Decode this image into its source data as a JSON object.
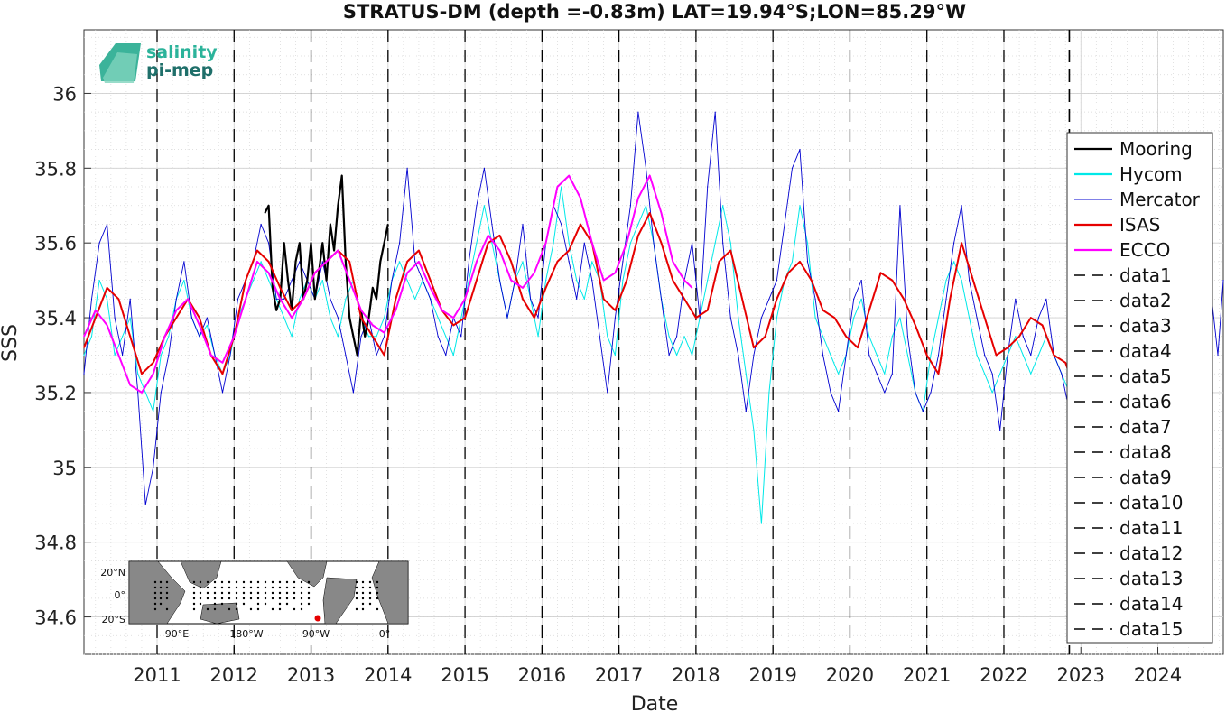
{
  "chart_data": {
    "type": "line",
    "title": "STRATUS-DM (depth =-0.83m) LAT=19.94°S;LON=85.29°W",
    "xlabel": "Date",
    "ylabel": "SSS",
    "xlim": [
      2010.05,
      2024.85
    ],
    "ylim": [
      34.5,
      36.17
    ],
    "x_ticks": [
      2011,
      2012,
      2013,
      2014,
      2015,
      2016,
      2017,
      2018,
      2019,
      2020,
      2021,
      2022,
      2023,
      2024
    ],
    "x_tick_labels": [
      "2011",
      "2012",
      "2013",
      "2014",
      "2015",
      "2016",
      "2017",
      "2018",
      "2019",
      "2020",
      "2021",
      "2022",
      "2023",
      "2024"
    ],
    "y_ticks": [
      34.6,
      34.8,
      35.0,
      35.2,
      35.4,
      35.6,
      35.8,
      36.0
    ],
    "y_tick_labels": [
      "34.6",
      "34.8",
      "35",
      "35.2",
      "35.4",
      "35.6",
      "35.8",
      "36"
    ],
    "grid": "minor dotted, major solid",
    "legend_position": "right",
    "vertical_markers": {
      "names": [
        "data1",
        "data2",
        "data3",
        "data4",
        "data5",
        "data6",
        "data7",
        "data8",
        "data9",
        "data10",
        "data11",
        "data12",
        "data13",
        "data14",
        "data15"
      ],
      "x": [
        2011.0,
        2012.0,
        2013.0,
        2014.0,
        2015.0,
        2016.0,
        2017.0,
        2018.0,
        2019.0,
        2020.0,
        2021.0,
        2022.0,
        2022.85,
        2022.85,
        2022.85
      ],
      "color": "#000000"
    },
    "series": [
      {
        "name": "Mooring",
        "color": "#000000",
        "x": [
          2012.4,
          2012.45,
          2012.5,
          2012.55,
          2012.6,
          2012.65,
          2012.7,
          2012.75,
          2012.8,
          2012.85,
          2012.9,
          2012.95,
          2013.0,
          2013.05,
          2013.1,
          2013.15,
          2013.2,
          2013.25,
          2013.3,
          2013.35,
          2013.4,
          2013.45,
          2013.5,
          2013.55,
          2013.6,
          2013.65,
          2013.7,
          2013.75,
          2013.8,
          2013.85,
          2013.9,
          2013.95,
          2014.0
        ],
        "y": [
          35.68,
          35.7,
          35.48,
          35.42,
          35.45,
          35.6,
          35.5,
          35.42,
          35.55,
          35.6,
          35.45,
          35.5,
          35.6,
          35.45,
          35.52,
          35.6,
          35.5,
          35.65,
          35.58,
          35.7,
          35.78,
          35.55,
          35.4,
          35.35,
          35.3,
          35.42,
          35.35,
          35.4,
          35.48,
          35.45,
          35.55,
          35.6,
          35.65
        ]
      },
      {
        "name": "Hycom",
        "color": "#00e8e8",
        "x": [
          2010.05,
          2010.15,
          2010.25,
          2010.35,
          2010.45,
          2010.55,
          2010.65,
          2010.75,
          2010.85,
          2010.95,
          2011.05,
          2011.15,
          2011.25,
          2011.35,
          2011.45,
          2011.55,
          2011.65,
          2011.75,
          2011.85,
          2011.95,
          2012.05,
          2012.15,
          2012.25,
          2012.35,
          2012.45,
          2012.55,
          2012.65,
          2012.75,
          2012.85,
          2012.95,
          2013.05,
          2013.15,
          2013.25,
          2013.35,
          2013.45,
          2013.55,
          2013.65,
          2013.75,
          2013.85,
          2013.95,
          2014.05,
          2014.15,
          2014.25,
          2014.35,
          2014.45,
          2014.55,
          2014.65,
          2014.75,
          2014.85,
          2014.95,
          2015.05,
          2015.15,
          2015.25,
          2015.35,
          2015.45,
          2015.55,
          2015.65,
          2015.75,
          2015.85,
          2015.95,
          2016.05,
          2016.15,
          2016.25,
          2016.35,
          2016.45,
          2016.55,
          2016.65,
          2016.75,
          2016.85,
          2016.95,
          2017.05,
          2017.15,
          2017.25,
          2017.35,
          2017.45,
          2017.55,
          2017.65,
          2017.75,
          2017.85,
          2017.95,
          2018.05,
          2018.15,
          2018.25,
          2018.35,
          2018.45,
          2018.55,
          2018.65,
          2018.75,
          2018.85,
          2018.95,
          2019.05,
          2019.15,
          2019.25,
          2019.35,
          2019.45,
          2019.55,
          2019.65,
          2019.75,
          2019.85,
          2019.95,
          2020.05,
          2020.15,
          2020.25,
          2020.35,
          2020.45,
          2020.55,
          2020.65,
          2020.75,
          2020.85,
          2020.95,
          2021.05,
          2021.15,
          2021.25,
          2021.35,
          2021.45,
          2021.55,
          2021.65,
          2021.75,
          2021.85,
          2021.95,
          2022.05,
          2022.15,
          2022.25,
          2022.35,
          2022.45,
          2022.55,
          2022.65,
          2022.75,
          2022.85
        ],
        "y": [
          35.3,
          35.35,
          35.5,
          35.45,
          35.3,
          35.35,
          35.4,
          35.25,
          35.2,
          35.15,
          35.3,
          35.35,
          35.45,
          35.5,
          35.4,
          35.35,
          35.38,
          35.3,
          35.25,
          35.3,
          35.4,
          35.45,
          35.5,
          35.55,
          35.5,
          35.45,
          35.4,
          35.35,
          35.45,
          35.5,
          35.45,
          35.5,
          35.4,
          35.35,
          35.45,
          35.5,
          35.4,
          35.35,
          35.35,
          35.4,
          35.5,
          35.55,
          35.5,
          35.45,
          35.5,
          35.45,
          35.4,
          35.35,
          35.3,
          35.4,
          35.5,
          35.6,
          35.7,
          35.6,
          35.5,
          35.4,
          35.5,
          35.55,
          35.45,
          35.35,
          35.5,
          35.6,
          35.75,
          35.6,
          35.5,
          35.45,
          35.55,
          35.5,
          35.35,
          35.3,
          35.5,
          35.6,
          35.65,
          35.7,
          35.6,
          35.45,
          35.35,
          35.3,
          35.35,
          35.3,
          35.4,
          35.5,
          35.6,
          35.7,
          35.6,
          35.4,
          35.25,
          35.1,
          34.85,
          35.2,
          35.4,
          35.5,
          35.55,
          35.7,
          35.6,
          35.4,
          35.35,
          35.3,
          35.25,
          35.3,
          35.4,
          35.45,
          35.35,
          35.3,
          35.25,
          35.35,
          35.4,
          35.3,
          35.2,
          35.15,
          35.3,
          35.4,
          35.5,
          35.55,
          35.5,
          35.4,
          35.3,
          35.25,
          35.2,
          35.25,
          35.3,
          35.35,
          35.3,
          35.25,
          35.3,
          35.35,
          35.3,
          35.25,
          35.2
        ]
      },
      {
        "name": "Mercator",
        "color": "#0000d0",
        "x": [
          2010.05,
          2010.15,
          2010.25,
          2010.35,
          2010.45,
          2010.55,
          2010.65,
          2010.75,
          2010.85,
          2010.95,
          2011.05,
          2011.15,
          2011.25,
          2011.35,
          2011.45,
          2011.55,
          2011.65,
          2011.75,
          2011.85,
          2011.95,
          2012.05,
          2012.15,
          2012.25,
          2012.35,
          2012.45,
          2012.55,
          2012.65,
          2012.75,
          2012.85,
          2012.95,
          2013.05,
          2013.15,
          2013.25,
          2013.35,
          2013.45,
          2013.55,
          2013.65,
          2013.75,
          2013.85,
          2013.95,
          2014.05,
          2014.15,
          2014.25,
          2014.35,
          2014.45,
          2014.55,
          2014.65,
          2014.75,
          2014.85,
          2014.95,
          2015.05,
          2015.15,
          2015.25,
          2015.35,
          2015.45,
          2015.55,
          2015.65,
          2015.75,
          2015.85,
          2015.95,
          2016.05,
          2016.15,
          2016.25,
          2016.35,
          2016.45,
          2016.55,
          2016.65,
          2016.75,
          2016.85,
          2016.95,
          2017.05,
          2017.15,
          2017.25,
          2017.35,
          2017.45,
          2017.55,
          2017.65,
          2017.75,
          2017.85,
          2017.95,
          2018.05,
          2018.15,
          2018.25,
          2018.35,
          2018.45,
          2018.55,
          2018.65,
          2018.75,
          2018.85,
          2018.95,
          2019.05,
          2019.15,
          2019.25,
          2019.35,
          2019.45,
          2019.55,
          2019.65,
          2019.75,
          2019.85,
          2019.95,
          2020.05,
          2020.15,
          2020.25,
          2020.35,
          2020.45,
          2020.55,
          2020.65,
          2020.75,
          2020.85,
          2020.95,
          2021.05,
          2021.15,
          2021.25,
          2021.35,
          2021.45,
          2021.55,
          2021.65,
          2021.75,
          2021.85,
          2021.95,
          2022.05,
          2022.15,
          2022.25,
          2022.35,
          2022.45,
          2022.55,
          2022.65,
          2022.75,
          2022.85,
          2024.7,
          2024.78,
          2024.85
        ],
        "y": [
          35.25,
          35.45,
          35.6,
          35.65,
          35.4,
          35.3,
          35.45,
          35.2,
          34.9,
          35.0,
          35.2,
          35.3,
          35.45,
          35.55,
          35.4,
          35.35,
          35.4,
          35.3,
          35.2,
          35.3,
          35.45,
          35.5,
          35.55,
          35.65,
          35.6,
          35.45,
          35.45,
          35.5,
          35.55,
          35.5,
          35.45,
          35.55,
          35.45,
          35.4,
          35.3,
          35.2,
          35.35,
          35.4,
          35.3,
          35.35,
          35.5,
          35.6,
          35.8,
          35.55,
          35.5,
          35.45,
          35.35,
          35.3,
          35.4,
          35.35,
          35.55,
          35.7,
          35.8,
          35.65,
          35.5,
          35.4,
          35.5,
          35.65,
          35.45,
          35.4,
          35.6,
          35.7,
          35.65,
          35.55,
          35.45,
          35.6,
          35.5,
          35.35,
          35.2,
          35.4,
          35.55,
          35.7,
          35.95,
          35.8,
          35.6,
          35.45,
          35.3,
          35.35,
          35.5,
          35.6,
          35.4,
          35.75,
          35.95,
          35.6,
          35.4,
          35.3,
          35.15,
          35.3,
          35.4,
          35.45,
          35.5,
          35.65,
          35.8,
          35.85,
          35.55,
          35.45,
          35.3,
          35.2,
          35.15,
          35.3,
          35.45,
          35.5,
          35.3,
          35.25,
          35.2,
          35.25,
          35.7,
          35.35,
          35.2,
          35.15,
          35.2,
          35.3,
          35.45,
          35.6,
          35.7,
          35.5,
          35.4,
          35.3,
          35.25,
          35.1,
          35.3,
          35.45,
          35.35,
          35.3,
          35.4,
          35.45,
          35.3,
          35.25,
          35.15,
          35.45,
          35.3,
          35.5
        ]
      },
      {
        "name": "ISAS",
        "color": "#e60000",
        "x": [
          2010.05,
          2010.2,
          2010.35,
          2010.5,
          2010.65,
          2010.8,
          2010.95,
          2011.1,
          2011.25,
          2011.4,
          2011.55,
          2011.7,
          2011.85,
          2012.0,
          2012.15,
          2012.3,
          2012.45,
          2012.6,
          2012.75,
          2012.9,
          2013.05,
          2013.2,
          2013.35,
          2013.5,
          2013.65,
          2013.8,
          2013.95,
          2014.1,
          2014.25,
          2014.4,
          2014.55,
          2014.7,
          2014.85,
          2015.0,
          2015.15,
          2015.3,
          2015.45,
          2015.6,
          2015.75,
          2015.9,
          2016.05,
          2016.2,
          2016.35,
          2016.5,
          2016.65,
          2016.8,
          2016.95,
          2017.1,
          2017.25,
          2017.4,
          2017.55,
          2017.7,
          2017.85,
          2018.0,
          2018.15,
          2018.3,
          2018.45,
          2018.6,
          2018.75,
          2018.9,
          2019.05,
          2019.2,
          2019.35,
          2019.5,
          2019.65,
          2019.8,
          2019.95,
          2020.1,
          2020.25,
          2020.4,
          2020.55,
          2020.7,
          2020.85,
          2021.0,
          2021.15,
          2021.3,
          2021.45,
          2021.6,
          2021.75,
          2021.9,
          2022.05,
          2022.2,
          2022.35,
          2022.5,
          2022.65,
          2022.8,
          2022.85
        ],
        "y": [
          35.32,
          35.4,
          35.48,
          35.45,
          35.35,
          35.25,
          35.28,
          35.35,
          35.4,
          35.45,
          35.4,
          35.3,
          35.25,
          35.35,
          35.5,
          35.58,
          35.55,
          35.48,
          35.42,
          35.45,
          35.52,
          35.55,
          35.58,
          35.55,
          35.4,
          35.35,
          35.3,
          35.45,
          35.55,
          35.58,
          35.5,
          35.42,
          35.38,
          35.4,
          35.5,
          35.6,
          35.62,
          35.55,
          35.45,
          35.4,
          35.48,
          35.55,
          35.58,
          35.65,
          35.6,
          35.45,
          35.42,
          35.5,
          35.62,
          35.68,
          35.6,
          35.5,
          35.45,
          35.4,
          35.42,
          35.55,
          35.58,
          35.45,
          35.32,
          35.35,
          35.45,
          35.52,
          35.55,
          35.5,
          35.42,
          35.4,
          35.35,
          35.32,
          35.42,
          35.52,
          35.5,
          35.45,
          35.38,
          35.3,
          35.25,
          35.45,
          35.6,
          35.5,
          35.4,
          35.3,
          35.32,
          35.35,
          35.4,
          35.38,
          35.3,
          35.28,
          35.25
        ]
      },
      {
        "name": "ECCO",
        "color": "#ff00ff",
        "x": [
          2010.05,
          2010.2,
          2010.35,
          2010.5,
          2010.65,
          2010.8,
          2010.95,
          2011.1,
          2011.25,
          2011.4,
          2011.55,
          2011.7,
          2011.85,
          2012.0,
          2012.15,
          2012.3,
          2012.45,
          2012.6,
          2012.75,
          2012.9,
          2013.05,
          2013.2,
          2013.35,
          2013.5,
          2013.65,
          2013.8,
          2013.95,
          2014.1,
          2014.25,
          2014.4,
          2014.55,
          2014.7,
          2014.85,
          2015.0,
          2015.15,
          2015.3,
          2015.45,
          2015.6,
          2015.75,
          2015.9,
          2016.05,
          2016.2,
          2016.35,
          2016.5,
          2016.65,
          2016.8,
          2016.95,
          2017.1,
          2017.25,
          2017.4,
          2017.55,
          2017.7,
          2017.85,
          2017.95
        ],
        "y": [
          35.35,
          35.42,
          35.38,
          35.3,
          35.22,
          35.2,
          35.25,
          35.35,
          35.42,
          35.45,
          35.38,
          35.3,
          35.28,
          35.35,
          35.45,
          35.55,
          35.52,
          35.45,
          35.4,
          35.45,
          35.52,
          35.55,
          35.58,
          35.5,
          35.42,
          35.38,
          35.36,
          35.42,
          35.52,
          35.55,
          35.48,
          35.42,
          35.4,
          35.45,
          35.55,
          35.62,
          35.58,
          35.5,
          35.48,
          35.52,
          35.6,
          35.75,
          35.78,
          35.72,
          35.6,
          35.5,
          35.52,
          35.6,
          35.72,
          35.78,
          35.68,
          35.55,
          35.5,
          35.48
        ]
      }
    ]
  },
  "logo": {
    "line1": "salinity",
    "line2": "pi-mep"
  },
  "inset_map": {
    "lat_labels": [
      "20°N",
      "0°",
      "20°S"
    ],
    "lon_labels": [
      "90°E",
      "180°W",
      "90°W",
      "0°"
    ]
  }
}
